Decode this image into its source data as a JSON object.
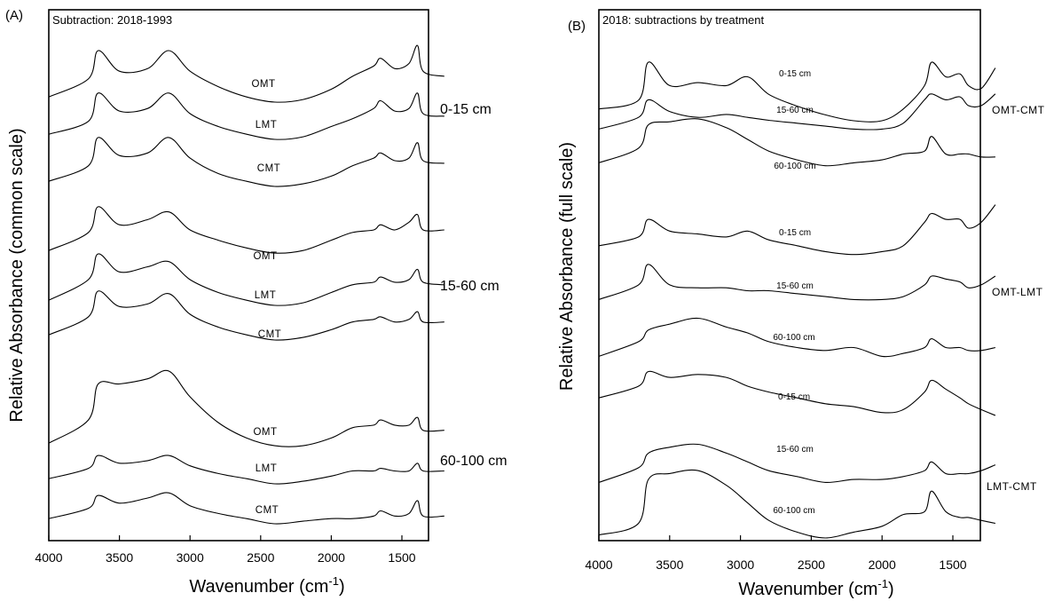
{
  "panels": [
    {
      "letter": "(A)",
      "title": "Subtraction: 2018-1993",
      "ylabel": "Relative Absorbance (common scale)",
      "xlabel_main": "Wavenumber (cm",
      "xlabel_sup": "-1",
      "xlabel_close": ")",
      "groups": [
        "0-15 cm",
        "15-60 cm",
        "60-100 cm"
      ],
      "sample_labels": [
        "OMT",
        "LMT",
        "CMT",
        "OMT",
        "LMT",
        "CMT",
        "OMT",
        "LMT",
        "CMT"
      ]
    },
    {
      "letter": "(B)",
      "title": "2018: subtractions by treatment",
      "ylabel": "Relative Absorbance (full scale)",
      "xlabel_main": "Wavenumber (cm",
      "xlabel_sup": "-1",
      "xlabel_close": ")",
      "groups": [
        "OMT-CMT",
        "OMT-LMT",
        "LMT-CMT"
      ],
      "sample_labels": [
        "0-15 cm",
        "15-60 cm",
        "60-100 cm",
        "0-15 cm",
        "15-60 cm",
        "60-100 cm",
        "0-15 cm",
        "15-60 cm",
        "60-100 cm"
      ]
    }
  ],
  "chart_data": [
    {
      "type": "line",
      "title": "Subtraction: 2018-1993",
      "xlabel": "Wavenumber (cm-1)",
      "ylabel": "Relative Absorbance (common scale)",
      "x_ticks": [
        4000,
        3500,
        3000,
        2500,
        2000,
        1500
      ],
      "xlim": [
        4000,
        1200
      ],
      "x_reversed": true,
      "y_ticks_shown": false,
      "grid": false,
      "legend": "none",
      "series": [
        {
          "name": "OMT",
          "group": "0-15 cm",
          "x": [
            4000,
            3720,
            3650,
            3500,
            3300,
            3150,
            3000,
            2800,
            2600,
            2400,
            2200,
            2000,
            1850,
            1700,
            1650,
            1550,
            1450,
            1390,
            1350,
            1200
          ],
          "y": [
            0.02,
            0.09,
            0.2,
            0.12,
            0.13,
            0.2,
            0.12,
            0.06,
            0.02,
            0.0,
            0.01,
            0.05,
            0.1,
            0.14,
            0.17,
            0.13,
            0.15,
            0.22,
            0.12,
            0.1
          ]
        },
        {
          "name": "LMT",
          "group": "0-15 cm",
          "x": [
            4000,
            3720,
            3650,
            3500,
            3300,
            3150,
            3000,
            2800,
            2600,
            2400,
            2200,
            2000,
            1850,
            1700,
            1650,
            1550,
            1450,
            1390,
            1350,
            1200
          ],
          "y": [
            0.02,
            0.07,
            0.18,
            0.11,
            0.12,
            0.18,
            0.1,
            0.05,
            0.02,
            0.0,
            0.01,
            0.05,
            0.08,
            0.12,
            0.15,
            0.11,
            0.12,
            0.18,
            0.1,
            0.09
          ]
        },
        {
          "name": "CMT",
          "group": "0-15 cm",
          "x": [
            4000,
            3720,
            3650,
            3500,
            3300,
            3150,
            3000,
            2800,
            2600,
            2400,
            2200,
            2000,
            1850,
            1700,
            1650,
            1550,
            1450,
            1390,
            1350,
            1200
          ],
          "y": [
            0.02,
            0.08,
            0.19,
            0.12,
            0.13,
            0.19,
            0.11,
            0.05,
            0.02,
            0.0,
            0.01,
            0.04,
            0.08,
            0.11,
            0.13,
            0.1,
            0.11,
            0.17,
            0.1,
            0.09
          ]
        },
        {
          "name": "OMT",
          "group": "15-60 cm",
          "x": [
            4000,
            3720,
            3650,
            3500,
            3300,
            3150,
            3000,
            2800,
            2600,
            2400,
            2200,
            2000,
            1850,
            1700,
            1650,
            1550,
            1450,
            1390,
            1350,
            1200
          ],
          "y": [
            0.02,
            0.09,
            0.19,
            0.12,
            0.14,
            0.17,
            0.1,
            0.06,
            0.03,
            0.01,
            0.02,
            0.06,
            0.09,
            0.1,
            0.12,
            0.1,
            0.13,
            0.16,
            0.1,
            0.1
          ]
        },
        {
          "name": "LMT",
          "group": "15-60 cm",
          "x": [
            4000,
            3720,
            3650,
            3500,
            3300,
            3150,
            3000,
            2800,
            2600,
            2400,
            2200,
            2000,
            1850,
            1700,
            1650,
            1550,
            1450,
            1390,
            1350,
            1200
          ],
          "y": [
            0.02,
            0.1,
            0.2,
            0.13,
            0.15,
            0.17,
            0.1,
            0.05,
            0.02,
            0.0,
            0.01,
            0.05,
            0.08,
            0.09,
            0.11,
            0.09,
            0.1,
            0.14,
            0.09,
            0.08
          ]
        },
        {
          "name": "CMT",
          "group": "15-60 cm",
          "x": [
            4000,
            3720,
            3650,
            3500,
            3300,
            3150,
            3000,
            2800,
            2600,
            2400,
            2200,
            2000,
            1850,
            1700,
            1650,
            1550,
            1450,
            1390,
            1350,
            1200
          ],
          "y": [
            0.02,
            0.09,
            0.19,
            0.13,
            0.14,
            0.18,
            0.1,
            0.05,
            0.02,
            0.0,
            0.01,
            0.04,
            0.07,
            0.08,
            0.09,
            0.07,
            0.08,
            0.11,
            0.07,
            0.07
          ]
        },
        {
          "name": "OMT",
          "group": "60-100 cm",
          "x": [
            4000,
            3720,
            3650,
            3500,
            3300,
            3150,
            3000,
            2800,
            2600,
            2400,
            2200,
            2000,
            1850,
            1700,
            1650,
            1550,
            1450,
            1390,
            1350,
            1200
          ],
          "y": [
            0.02,
            0.11,
            0.25,
            0.25,
            0.27,
            0.3,
            0.2,
            0.1,
            0.04,
            0.01,
            0.01,
            0.04,
            0.08,
            0.09,
            0.11,
            0.09,
            0.09,
            0.12,
            0.07,
            0.07
          ]
        },
        {
          "name": "LMT",
          "group": "60-100 cm",
          "x": [
            4000,
            3720,
            3650,
            3500,
            3300,
            3150,
            3000,
            2800,
            2600,
            2400,
            2200,
            2000,
            1850,
            1700,
            1650,
            1550,
            1450,
            1390,
            1350,
            1200
          ],
          "y": [
            0.02,
            0.06,
            0.11,
            0.08,
            0.09,
            0.11,
            0.07,
            0.04,
            0.02,
            0.0,
            0.01,
            0.03,
            0.05,
            0.05,
            0.06,
            0.05,
            0.05,
            0.08,
            0.05,
            0.05
          ]
        },
        {
          "name": "CMT",
          "group": "60-100 cm",
          "x": [
            4000,
            3720,
            3650,
            3500,
            3300,
            3150,
            3000,
            2800,
            2600,
            2400,
            2200,
            2000,
            1850,
            1700,
            1650,
            1550,
            1450,
            1390,
            1350,
            1200
          ],
          "y": [
            0.02,
            0.06,
            0.11,
            0.08,
            0.1,
            0.12,
            0.07,
            0.04,
            0.02,
            0.0,
            0.01,
            0.02,
            0.02,
            0.03,
            0.05,
            0.03,
            0.04,
            0.09,
            0.03,
            0.03
          ]
        }
      ]
    },
    {
      "type": "line",
      "title": "2018: subtractions by treatment",
      "xlabel": "Wavenumber (cm-1)",
      "ylabel": "Relative Absorbance (full scale)",
      "x_ticks": [
        4000,
        3500,
        3000,
        2500,
        2000,
        1500
      ],
      "xlim": [
        4000,
        1200
      ],
      "x_reversed": true,
      "y_ticks_shown": false,
      "grid": false,
      "legend": "none",
      "series": [
        {
          "name": "0-15 cm",
          "group": "OMT-CMT",
          "x": [
            4000,
            3720,
            3650,
            3500,
            3300,
            3100,
            2950,
            2800,
            2600,
            2400,
            2200,
            2000,
            1850,
            1700,
            1650,
            1550,
            1450,
            1390,
            1300,
            1200
          ],
          "y": [
            0.04,
            0.07,
            0.2,
            0.12,
            0.13,
            0.12,
            0.15,
            0.09,
            0.05,
            0.02,
            0.0,
            0.0,
            0.04,
            0.12,
            0.2,
            0.15,
            0.16,
            0.12,
            0.11,
            0.18
          ]
        },
        {
          "name": "15-60 cm",
          "group": "OMT-CMT",
          "x": [
            4000,
            3720,
            3650,
            3500,
            3300,
            3100,
            2950,
            2800,
            2600,
            2400,
            2200,
            2000,
            1850,
            1700,
            1650,
            1550,
            1450,
            1390,
            1300,
            1200
          ],
          "y": [
            0.02,
            0.06,
            0.12,
            0.08,
            0.06,
            0.07,
            0.06,
            0.05,
            0.04,
            0.03,
            0.02,
            0.02,
            0.04,
            0.12,
            0.14,
            0.12,
            0.13,
            0.1,
            0.1,
            0.14
          ]
        },
        {
          "name": "60-100 cm",
          "group": "OMT-CMT",
          "x": [
            4000,
            3720,
            3650,
            3500,
            3300,
            3100,
            2950,
            2800,
            2600,
            2400,
            2200,
            2000,
            1850,
            1700,
            1650,
            1550,
            1450,
            1390,
            1300,
            1200
          ],
          "y": [
            0.02,
            0.07,
            0.15,
            0.16,
            0.17,
            0.14,
            0.1,
            0.06,
            0.03,
            0.01,
            0.02,
            0.03,
            0.05,
            0.06,
            0.11,
            0.05,
            0.05,
            0.05,
            0.04,
            0.04
          ]
        },
        {
          "name": "0-15 cm",
          "group": "OMT-LMT",
          "x": [
            4000,
            3720,
            3650,
            3500,
            3300,
            3100,
            2950,
            2800,
            2600,
            2400,
            2200,
            2000,
            1850,
            1700,
            1650,
            1550,
            1450,
            1390,
            1300,
            1200
          ],
          "y": [
            0.04,
            0.07,
            0.13,
            0.09,
            0.08,
            0.07,
            0.09,
            0.06,
            0.04,
            0.02,
            0.01,
            0.02,
            0.04,
            0.12,
            0.15,
            0.13,
            0.13,
            0.1,
            0.12,
            0.18
          ]
        },
        {
          "name": "15-60 cm",
          "group": "OMT-LMT",
          "x": [
            4000,
            3720,
            3650,
            3500,
            3300,
            3100,
            2950,
            2800,
            2600,
            2400,
            2200,
            2000,
            1850,
            1700,
            1650,
            1550,
            1450,
            1390,
            1300,
            1200
          ],
          "y": [
            0.02,
            0.07,
            0.14,
            0.07,
            0.06,
            0.06,
            0.05,
            0.05,
            0.04,
            0.03,
            0.02,
            0.02,
            0.03,
            0.07,
            0.1,
            0.09,
            0.08,
            0.06,
            0.07,
            0.1
          ]
        },
        {
          "name": "60-100 cm",
          "group": "OMT-LMT",
          "x": [
            4000,
            3720,
            3650,
            3500,
            3300,
            3100,
            2950,
            2800,
            2600,
            2400,
            2200,
            2000,
            1850,
            1700,
            1650,
            1550,
            1450,
            1390,
            1300,
            1200
          ],
          "y": [
            0.02,
            0.07,
            0.11,
            0.13,
            0.15,
            0.12,
            0.1,
            0.07,
            0.05,
            0.04,
            0.05,
            0.02,
            0.03,
            0.05,
            0.08,
            0.05,
            0.05,
            0.04,
            0.04,
            0.05
          ]
        },
        {
          "name": "0-15 cm",
          "group": "LMT-CMT",
          "x": [
            4000,
            3720,
            3650,
            3500,
            3300,
            3100,
            2950,
            2800,
            2600,
            2400,
            2200,
            2000,
            1850,
            1700,
            1650,
            1550,
            1450,
            1390,
            1300,
            1200
          ],
          "y": [
            0.06,
            0.1,
            0.15,
            0.13,
            0.14,
            0.13,
            0.1,
            0.08,
            0.06,
            0.04,
            0.03,
            0.01,
            0.02,
            0.08,
            0.12,
            0.09,
            0.06,
            0.04,
            0.02,
            0.0
          ]
        },
        {
          "name": "15-60 cm",
          "group": "LMT-CMT",
          "x": [
            4000,
            3720,
            3650,
            3500,
            3300,
            3100,
            2950,
            2800,
            2600,
            2400,
            2200,
            2000,
            1850,
            1700,
            1650,
            1550,
            1450,
            1390,
            1300,
            1200
          ],
          "y": [
            0.02,
            0.07,
            0.12,
            0.14,
            0.15,
            0.12,
            0.09,
            0.06,
            0.04,
            0.02,
            0.03,
            0.03,
            0.04,
            0.06,
            0.09,
            0.05,
            0.05,
            0.05,
            0.06,
            0.08
          ]
        },
        {
          "name": "60-100 cm",
          "group": "LMT-CMT",
          "x": [
            4000,
            3720,
            3650,
            3500,
            3300,
            3100,
            2950,
            2800,
            2600,
            2400,
            2200,
            2000,
            1850,
            1700,
            1650,
            1550,
            1450,
            1390,
            1300,
            1200
          ],
          "y": [
            0.01,
            0.05,
            0.2,
            0.22,
            0.23,
            0.18,
            0.12,
            0.06,
            0.02,
            0.0,
            0.02,
            0.04,
            0.08,
            0.09,
            0.16,
            0.09,
            0.07,
            0.07,
            0.06,
            0.05
          ]
        }
      ]
    }
  ]
}
